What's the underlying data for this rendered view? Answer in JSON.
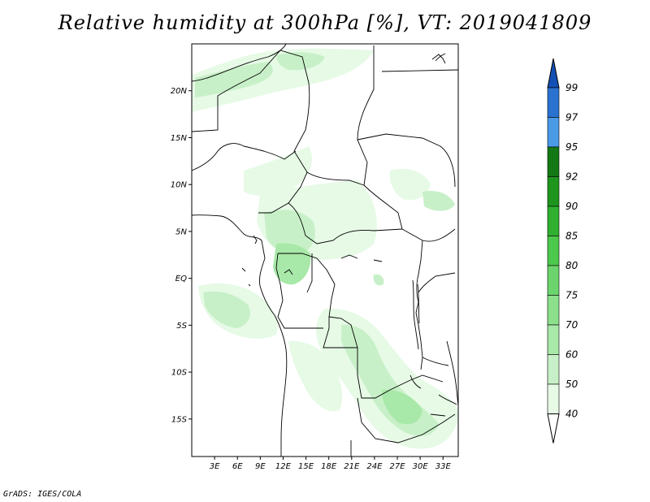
{
  "title": "Relative humidity at 300hPa [%], VT: 2019041809",
  "credit": "GrADS: IGES/COLA",
  "map": {
    "lat_labels": [
      "20N",
      "15N",
      "10N",
      "5N",
      "EQ",
      "5S",
      "10S",
      "15S"
    ],
    "lat_values": [
      20,
      15,
      10,
      5,
      0,
      -5,
      -10,
      -15
    ],
    "lon_labels": [
      "3E",
      "6E",
      "9E",
      "12E",
      "15E",
      "18E",
      "21E",
      "24E",
      "27E",
      "30E",
      "33E"
    ],
    "lon_values": [
      3,
      6,
      9,
      12,
      15,
      18,
      21,
      24,
      27,
      30,
      33
    ],
    "extent": {
      "lon_min": 0,
      "lon_max": 35,
      "lat_min": -19,
      "lat_max": 25
    }
  },
  "colorbar": {
    "labels": [
      "40",
      "50",
      "60",
      "70",
      "75",
      "80",
      "85",
      "90",
      "92",
      "95",
      "97",
      "99"
    ],
    "colors": [
      "#ffffff",
      "#e6fae6",
      "#c8f0c8",
      "#a8e8a8",
      "#8ce08c",
      "#6cd46c",
      "#4cc84c",
      "#30b030",
      "#1e961e",
      "#147814",
      "#4a9ae6",
      "#2a72d0",
      "#1450b4"
    ]
  }
}
